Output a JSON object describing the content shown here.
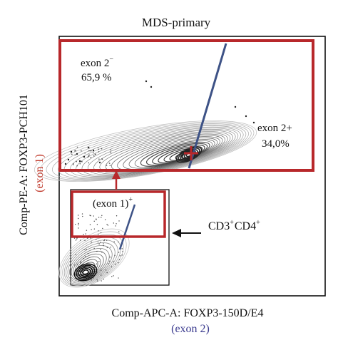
{
  "chart_data": {
    "type": "scatter",
    "subtype": "flow-cytometry-contour-plot",
    "title": "MDS-primary",
    "xlabel": "Comp-APC-A: FOXP3-150D/E4",
    "xlabel_sub": "(exon 2)",
    "ylabel": "Comp-PE-A: FOXP3-PCH101",
    "ylabel_sub": "(exon 1)",
    "gates": [
      {
        "name": "exon 2-",
        "label": "exon 2",
        "label_sup": "−",
        "value_text": "65,9 %",
        "percent": 65.9
      },
      {
        "name": "exon 2+",
        "label": "exon 2+",
        "value_text": "34,0%",
        "percent": 34.0
      }
    ],
    "inset": {
      "gate_label": "(exon 1)",
      "gate_label_sup": "+",
      "population_label": "CD3",
      "population_label_sup1": "+",
      "population_label_mid": "CD4",
      "population_label_sup2": "+"
    }
  },
  "colors": {
    "gate_red": "#b8282b",
    "divider_blue": "#3d5286",
    "axis_black": "#111111",
    "ylabel_sub_color": "#c0392b",
    "xlabel_sub_color": "#3b3b8f",
    "contour_gray": "#777777"
  }
}
